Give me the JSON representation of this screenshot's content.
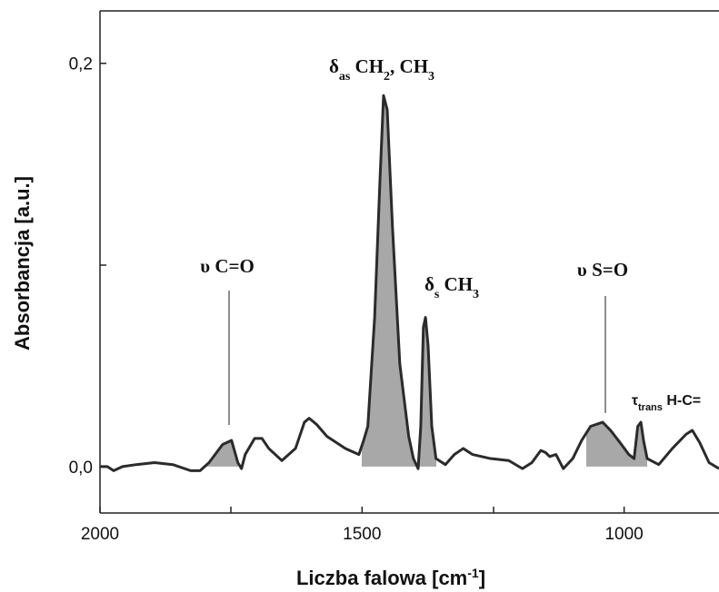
{
  "chart_data": {
    "type": "line",
    "ylabel": "Absorbancja  [a.u.]",
    "xlabel": {
      "parts": [
        "Liczba falowa  [cm",
        "-1",
        "]"
      ]
    },
    "color": "#2b2b2b",
    "shade_color": "#a8a8a8",
    "x": [
      2000,
      1986,
      1974,
      1957,
      1931,
      1896,
      1861,
      1827,
      1809,
      1792,
      1766,
      1749,
      1737,
      1730,
      1723,
      1705,
      1691,
      1678,
      1653,
      1627,
      1610,
      1601,
      1587,
      1567,
      1532,
      1506,
      1497,
      1489,
      1476,
      1466,
      1459,
      1452,
      1442,
      1428,
      1411,
      1402,
      1393,
      1388,
      1383,
      1379,
      1374,
      1367,
      1359,
      1341,
      1324,
      1307,
      1289,
      1255,
      1220,
      1194,
      1176,
      1159,
      1150,
      1142,
      1130,
      1116,
      1098,
      1081,
      1064,
      1041,
      1026,
      1008,
      991,
      981,
      974,
      968,
      963,
      956,
      934,
      908,
      882,
      870,
      856,
      838,
      819
    ],
    "values": [
      0,
      0,
      -0.002,
      0,
      0.001,
      0.002,
      0.001,
      -0.002,
      -0.002,
      0.002,
      0.011,
      0.013,
      0.002,
      -0.001,
      0.006,
      0.014,
      0.014,
      0.009,
      0.003,
      0.009,
      0.022,
      0.024,
      0.021,
      0.015,
      0.009,
      0.006,
      0.013,
      0.02,
      0.074,
      0.141,
      0.184,
      0.177,
      0.119,
      0.051,
      0.015,
      0.004,
      -0.001,
      0.02,
      0.069,
      0.074,
      0.06,
      0.02,
      0.004,
      0.001,
      0.006,
      0.009,
      0.006,
      0.004,
      0.003,
      -0.001,
      0.002,
      0.008,
      0.007,
      0.005,
      0.006,
      -0.001,
      0.004,
      0.013,
      0.02,
      0.022,
      0.018,
      0.012,
      0.006,
      0.004,
      0.02,
      0.022,
      0.013,
      0.004,
      0.001,
      0.009,
      0.016,
      0.018,
      0.012,
      0.002,
      -0.001
    ],
    "xlim": [
      2000,
      819
    ],
    "ylim": [
      -0.023,
      0.226
    ],
    "xticks": [
      2000,
      1500,
      1000
    ],
    "yticks": [
      {
        "value": 0.0,
        "label": "0,0"
      },
      {
        "value": 0.2,
        "label": "0,2"
      }
    ],
    "annotations": [
      {
        "parts": [
          "δ",
          "as",
          " CH",
          "2",
          ", CH",
          "3"
        ]
      },
      {
        "parts": [
          "δ",
          "s",
          " CH",
          "3"
        ]
      },
      {
        "parts": [
          "υ C=O"
        ]
      },
      {
        "parts": [
          "υ S=O"
        ]
      },
      {
        "parts": [
          "τ",
          "trans",
          " H-C="
        ]
      }
    ]
  }
}
